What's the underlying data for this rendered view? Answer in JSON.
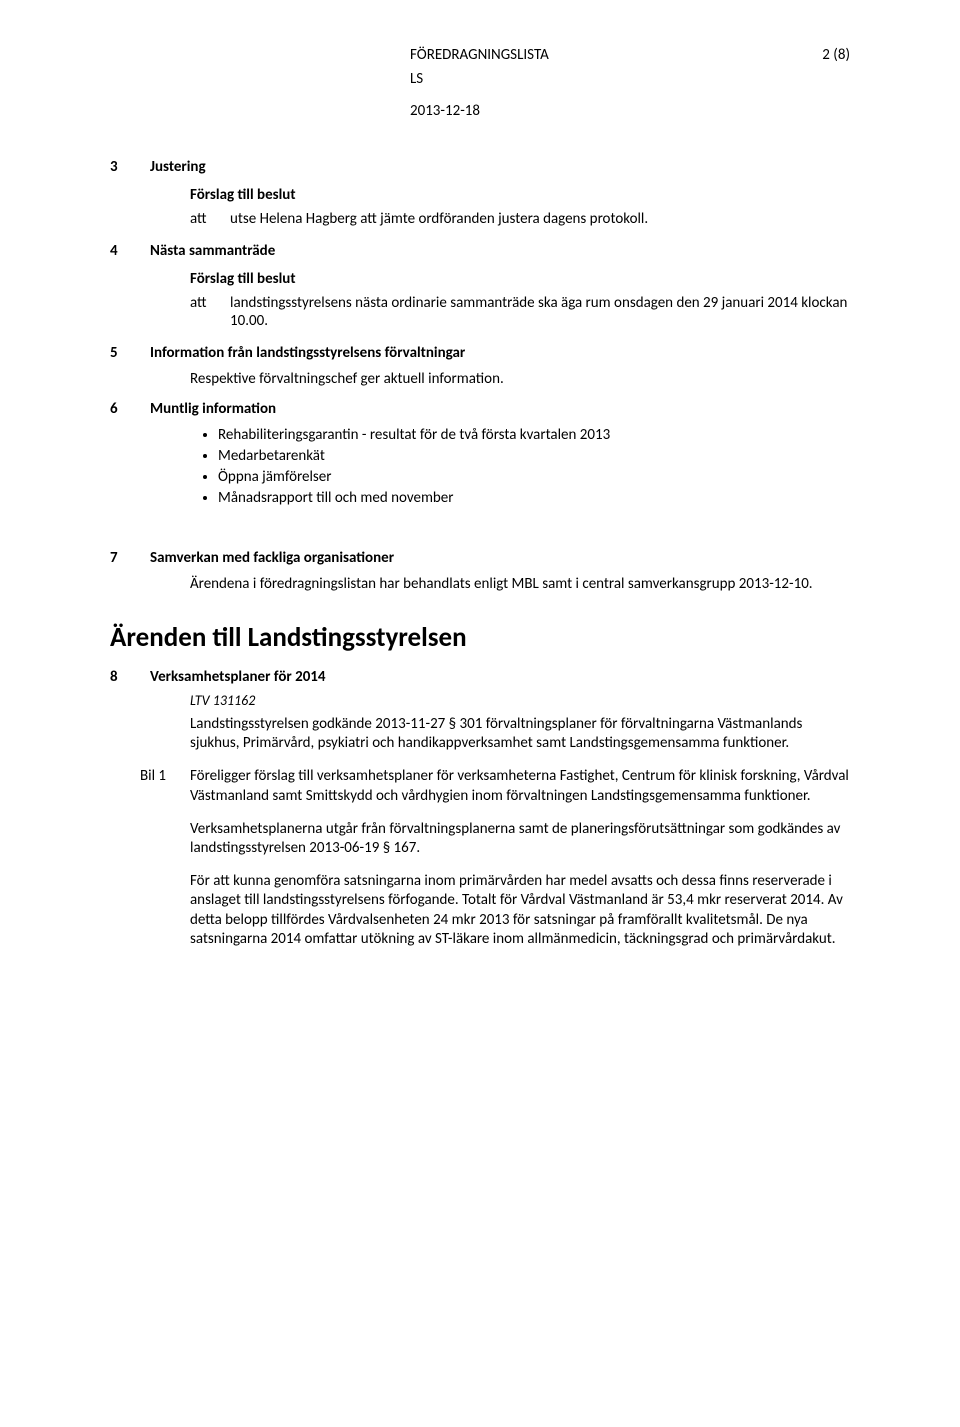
{
  "header": {
    "doc_type": "FÖREDRAGNINGSLISTA",
    "page_indicator": "2 (8)",
    "sub": "LS",
    "date": "2013-12-18"
  },
  "labels": {
    "proposal_heading": "Förslag till beslut",
    "att": "att"
  },
  "items": {
    "i3": {
      "num": "3",
      "title": "Justering",
      "att_text": "utse Helena Hagberg att jämte ordföranden justera dagens protokoll."
    },
    "i4": {
      "num": "4",
      "title": "Nästa sammanträde",
      "att_text": "landstingsstyrelsens nästa ordinarie sammanträde ska äga rum onsdagen den 29 januari 2014 klockan 10.00."
    },
    "i5": {
      "num": "5",
      "title": "Information från landstingsstyrelsens förvaltningar",
      "body": "Respektive förvaltningschef ger aktuell information."
    },
    "i6": {
      "num": "6",
      "title": "Muntlig information",
      "bullets": [
        "Rehabiliteringsgarantin - resultat för de två första kvartalen 2013",
        "Medarbetarenkät",
        "Öppna jämförelser",
        "Månadsrapport till och med november"
      ]
    },
    "i7": {
      "num": "7",
      "title": "Samverkan med fackliga organisationer",
      "body": "Ärendena i föredragningslistan har behandlats enligt MBL samt i central samverkansgrupp 2013-12-10."
    }
  },
  "main_heading": "Ärenden till Landstingsstyrelsen",
  "item8": {
    "num": "8",
    "title": "Verksamhetsplaner för 2014",
    "ref": "LTV 131162",
    "p1": "Landstingsstyrelsen godkände 2013-11-27 § 301 förvaltningsplaner för förvaltningarna Västmanlands sjukhus, Primärvård, psykiatri och handikappverksamhet samt Landstingsgemensamma funktioner.",
    "bil_label": "Bil 1",
    "p2": "Föreligger förslag till verksamhetsplaner för verksamheterna Fastighet, Centrum för klinisk forskning, Vårdval Västmanland samt Smittskydd och vårdhygien inom förvaltningen Landstingsgemensamma funktioner.",
    "p3": "Verksamhetsplanerna utgår från förvaltningsplanerna samt de planeringsförutsättningar som godkändes av landstingsstyrelsen 2013-06-19 § 167.",
    "p4": "För att kunna genomföra satsningarna inom primärvården har medel avsatts och dessa finns reserverade i anslaget till landstingsstyrelsens förfogande. Totalt för Vårdval Västmanland är 53,4 mkr reserverat 2014. Av detta belopp tillfördes Vårdvalsenheten 24 mkr 2013 för satsningar på framförallt kvalitetsmål. De nya satsningarna 2014 omfattar utökning av ST-läkare inom allmänmedicin, täckningsgrad och primärvårdakut."
  }
}
